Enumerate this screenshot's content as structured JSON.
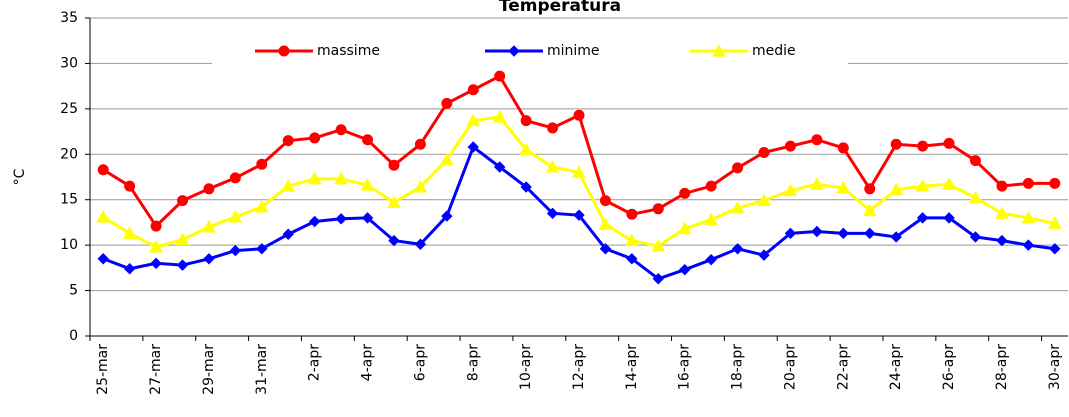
{
  "chart_data": {
    "type": "line",
    "title": "Temperatura",
    "y_label": "°C",
    "categories": [
      "25-mar",
      null,
      "27-mar",
      null,
      "29-mar",
      null,
      "31-mar",
      null,
      "2-apr",
      null,
      "4-apr",
      null,
      "6-apr",
      null,
      "8-apr",
      null,
      "10-apr",
      null,
      "12-apr",
      null,
      "14-apr",
      null,
      "16-apr",
      null,
      "18-apr",
      null,
      "20-apr",
      null,
      "22-apr",
      null,
      "24-apr",
      null,
      "26-apr",
      null,
      "28-apr",
      null,
      "30-apr"
    ],
    "series": [
      {
        "name": "massime",
        "color": "#ff0000",
        "marker": "circle",
        "values": [
          18.3,
          16.5,
          12.1,
          14.9,
          16.2,
          17.4,
          18.9,
          21.5,
          21.8,
          22.7,
          21.6,
          18.8,
          21.1,
          25.6,
          27.1,
          28.6,
          23.7,
          22.9,
          24.3,
          14.9,
          13.4,
          14.0,
          15.7,
          16.5,
          18.5,
          20.2,
          20.9,
          21.6,
          20.7,
          16.2,
          21.1,
          20.9,
          21.2,
          19.3,
          16.5,
          16.8,
          16.8
        ]
      },
      {
        "name": "minime",
        "color": "#0000ff",
        "marker": "diamond",
        "values": [
          8.5,
          7.4,
          8.0,
          7.8,
          8.5,
          9.4,
          9.6,
          11.2,
          12.6,
          12.9,
          13.0,
          10.5,
          10.1,
          13.2,
          20.8,
          18.6,
          16.4,
          13.5,
          13.3,
          9.6,
          8.5,
          6.3,
          7.3,
          8.4,
          9.6,
          8.9,
          11.3,
          11.5,
          11.3,
          11.3,
          10.9,
          13.0,
          13.0,
          10.9,
          10.5,
          10.0,
          9.6
        ]
      },
      {
        "name": "medie",
        "color": "#ffff00",
        "marker": "triangle",
        "values": [
          13.1,
          11.3,
          9.8,
          10.6,
          12.0,
          13.1,
          14.2,
          16.5,
          17.3,
          17.3,
          16.6,
          14.7,
          16.4,
          19.4,
          23.7,
          24.1,
          20.5,
          18.6,
          18.0,
          12.3,
          10.5,
          9.9,
          11.8,
          12.8,
          14.1,
          14.9,
          16.0,
          16.7,
          16.3,
          13.8,
          16.1,
          16.5,
          16.7,
          15.2,
          13.5,
          13.0,
          12.4
        ]
      }
    ],
    "ylim": [
      0,
      35
    ],
    "yticks": [
      0,
      5,
      10,
      15,
      20,
      25,
      30,
      35
    ],
    "grid": true,
    "legend": "top"
  }
}
